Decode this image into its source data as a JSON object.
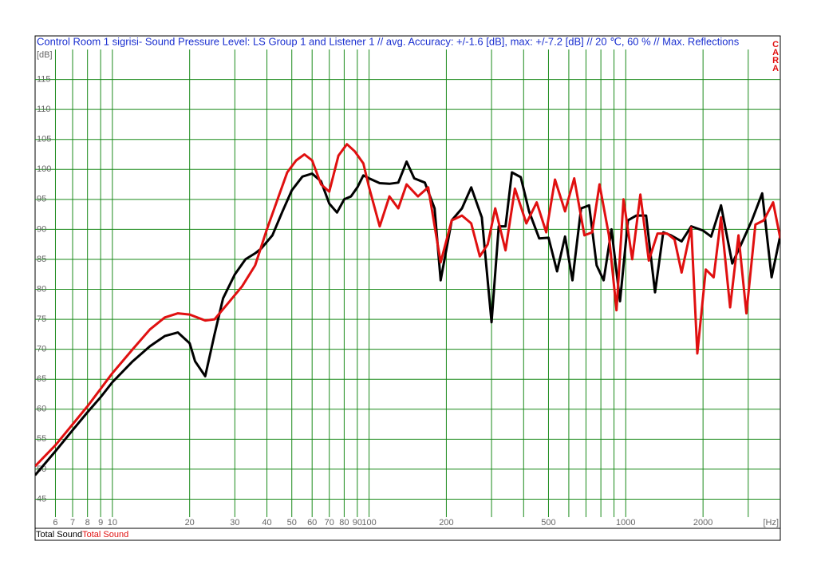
{
  "chart_data": {
    "type": "line",
    "title": "Control Room 1 sigrisi- Sound Pressure Level:  LS Group 1  and Listener 1 // avg. Accuracy: +/-1.6 [dB], max: +/-7.2 [dB] // 20 ℃, 60 % // Max. Reflections",
    "logo": "CARA",
    "y_label": "[dB]",
    "x_label": "[Hz]",
    "xlim": [
      5,
      4000
    ],
    "log_x": true,
    "xticks": [
      6,
      7,
      8,
      9,
      10,
      20,
      30,
      40,
      50,
      60,
      70,
      80,
      90,
      100,
      200,
      500,
      1000,
      2000
    ],
    "minor_xticks": [
      300,
      400,
      600,
      700,
      800,
      900,
      3000
    ],
    "ylim": [
      42,
      120
    ],
    "yticks": [
      45,
      50,
      55,
      60,
      65,
      70,
      75,
      80,
      85,
      90,
      95,
      100,
      105,
      110,
      115
    ],
    "grid": true,
    "grid_color": "#1a8a1a",
    "series": [
      {
        "name": "Total Sound",
        "color": "#000000",
        "x": [
          5,
          6,
          7,
          8,
          9,
          10,
          12,
          14,
          16,
          18,
          20,
          21,
          23,
          25,
          27,
          30,
          33,
          36,
          38,
          42,
          46,
          50,
          55,
          60,
          65,
          70,
          75,
          80,
          85,
          90,
          95,
          100,
          110,
          120,
          130,
          140,
          150,
          165,
          180,
          190,
          210,
          230,
          250,
          275,
          300,
          320,
          340,
          360,
          390,
          420,
          460,
          500,
          540,
          580,
          620,
          670,
          720,
          770,
          820,
          880,
          950,
          1020,
          1100,
          1200,
          1300,
          1400,
          1500,
          1650,
          1800,
          2000,
          2150,
          2350,
          2600,
          2850,
          3100,
          3400,
          3700,
          4000
        ],
        "values": [
          49,
          53,
          56.5,
          59.5,
          62,
          64.5,
          68,
          70.5,
          72.2,
          72.8,
          71,
          68,
          65.5,
          72.5,
          78.5,
          82.5,
          85,
          86,
          86.8,
          89,
          93,
          96.5,
          98.8,
          99.3,
          98,
          94.3,
          92.8,
          95,
          95.5,
          97,
          99,
          98.5,
          97.7,
          97.6,
          97.8,
          101.3,
          98.5,
          97.8,
          93.5,
          81.5,
          91.5,
          93.5,
          97,
          92,
          74.5,
          90.5,
          90.5,
          99.5,
          98.7,
          93,
          88.5,
          88.6,
          83,
          88.8,
          81.5,
          93.5,
          94,
          84,
          81.5,
          90,
          78,
          91.5,
          92.3,
          92.3,
          79.5,
          89.5,
          89,
          88,
          90.5,
          89.8,
          88.8,
          94,
          84.3,
          88,
          91.5,
          96,
          82,
          89
        ]
      },
      {
        "name": "Total Sound",
        "color": "#e01010",
        "x": [
          5,
          6,
          8,
          10,
          12,
          14,
          16,
          18,
          20,
          23,
          25,
          28,
          32,
          36,
          40,
          44,
          48,
          52,
          56,
          60,
          65,
          70,
          76,
          82,
          88,
          95,
          100,
          110,
          120,
          130,
          140,
          155,
          170,
          190,
          210,
          230,
          250,
          270,
          290,
          310,
          340,
          370,
          410,
          450,
          490,
          530,
          580,
          630,
          690,
          740,
          790,
          860,
          920,
          980,
          1060,
          1140,
          1230,
          1330,
          1450,
          1550,
          1650,
          1800,
          1900,
          2050,
          2200,
          2350,
          2550,
          2750,
          2950,
          3200,
          3450,
          3750,
          4000
        ],
        "values": [
          50.5,
          54,
          60.5,
          66,
          70,
          73.3,
          75.3,
          76,
          75.8,
          74.8,
          75,
          77.5,
          80.5,
          84,
          90,
          95,
          99.5,
          101.5,
          102.5,
          101.5,
          97.5,
          96.3,
          102.3,
          104.2,
          103,
          101,
          97,
          90.5,
          95.5,
          93.5,
          97.5,
          95.5,
          97,
          84.5,
          91.5,
          92.3,
          91,
          85.5,
          87.5,
          93.5,
          86.5,
          96.8,
          91,
          94.5,
          89.5,
          98.3,
          93,
          98.5,
          89,
          89.5,
          97.5,
          89,
          76.5,
          95,
          85,
          95.8,
          84.8,
          89.3,
          89.3,
          88.3,
          82.8,
          90.3,
          69.3,
          83.3,
          82,
          92,
          77,
          89,
          76,
          90.8,
          91.5,
          94.5,
          88.5
        ]
      }
    ]
  }
}
